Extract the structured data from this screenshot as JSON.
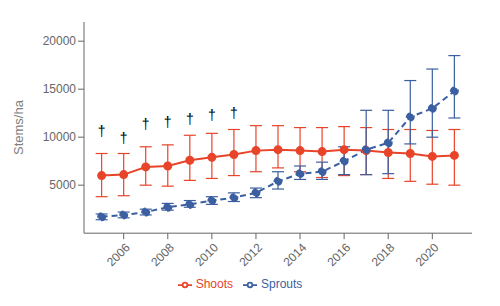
{
  "chart_data": {
    "type": "line",
    "x": [
      2005,
      2006,
      2007,
      2008,
      2009,
      2010,
      2011,
      2012,
      2013,
      2014,
      2015,
      2016,
      2017,
      2018,
      2019,
      2020,
      2021
    ],
    "series": [
      {
        "name": "Shoots",
        "color": "#E8442A",
        "line_style": "solid",
        "marker": "circle",
        "values": [
          6000,
          6100,
          6900,
          7000,
          7600,
          7900,
          8200,
          8600,
          8700,
          8600,
          8500,
          8700,
          8600,
          8400,
          8300,
          8000,
          8100
        ],
        "lower": [
          3800,
          3900,
          5000,
          4900,
          5500,
          5700,
          6000,
          6400,
          6800,
          6400,
          5800,
          6000,
          6100,
          5700,
          5400,
          5100,
          5000
        ],
        "upper": [
          8300,
          8300,
          9000,
          9200,
          10200,
          10400,
          10800,
          11200,
          11200,
          11000,
          11000,
          11100,
          11000,
          10800,
          10800,
          10700,
          10800
        ]
      },
      {
        "name": "Sprouts",
        "color": "#3B5FA0",
        "line_style": "dashed",
        "marker": "circle",
        "values": [
          1700,
          1900,
          2200,
          2700,
          3000,
          3400,
          3700,
          4200,
          5400,
          6200,
          6400,
          7500,
          8700,
          9400,
          12100,
          13000,
          14800
        ],
        "lower": [
          1400,
          1600,
          1900,
          2400,
          2700,
          3000,
          3300,
          3700,
          4600,
          5600,
          5600,
          6100,
          6100,
          6200,
          9300,
          10000,
          12000
        ],
        "upper": [
          2000,
          2200,
          2500,
          3100,
          3400,
          3800,
          4200,
          4700,
          6400,
          7000,
          7400,
          9000,
          12800,
          12800,
          15900,
          17100,
          18500
        ]
      }
    ],
    "annotations": [
      {
        "x": 2005,
        "y": 9800,
        "text": "†"
      },
      {
        "x": 2006,
        "y": 9100,
        "text": "†"
      },
      {
        "x": 2007,
        "y": 10500,
        "text": "†"
      },
      {
        "x": 2008,
        "y": 10700,
        "text": "†"
      },
      {
        "x": 2009,
        "y": 11100,
        "text": "†"
      },
      {
        "x": 2010,
        "y": 11500,
        "text": "†"
      },
      {
        "x": 2011,
        "y": 11700,
        "text": "†"
      }
    ],
    "y_label": "Stems/ha",
    "xlim": [
      2004.2,
      2021.8
    ],
    "xticks": [
      2006,
      2008,
      2010,
      2012,
      2014,
      2016,
      2018,
      2020
    ],
    "ylim": [
      0,
      22000
    ],
    "yticks": [
      5000,
      10000,
      15000,
      20000
    ],
    "grid": false,
    "legend": "bottom"
  }
}
